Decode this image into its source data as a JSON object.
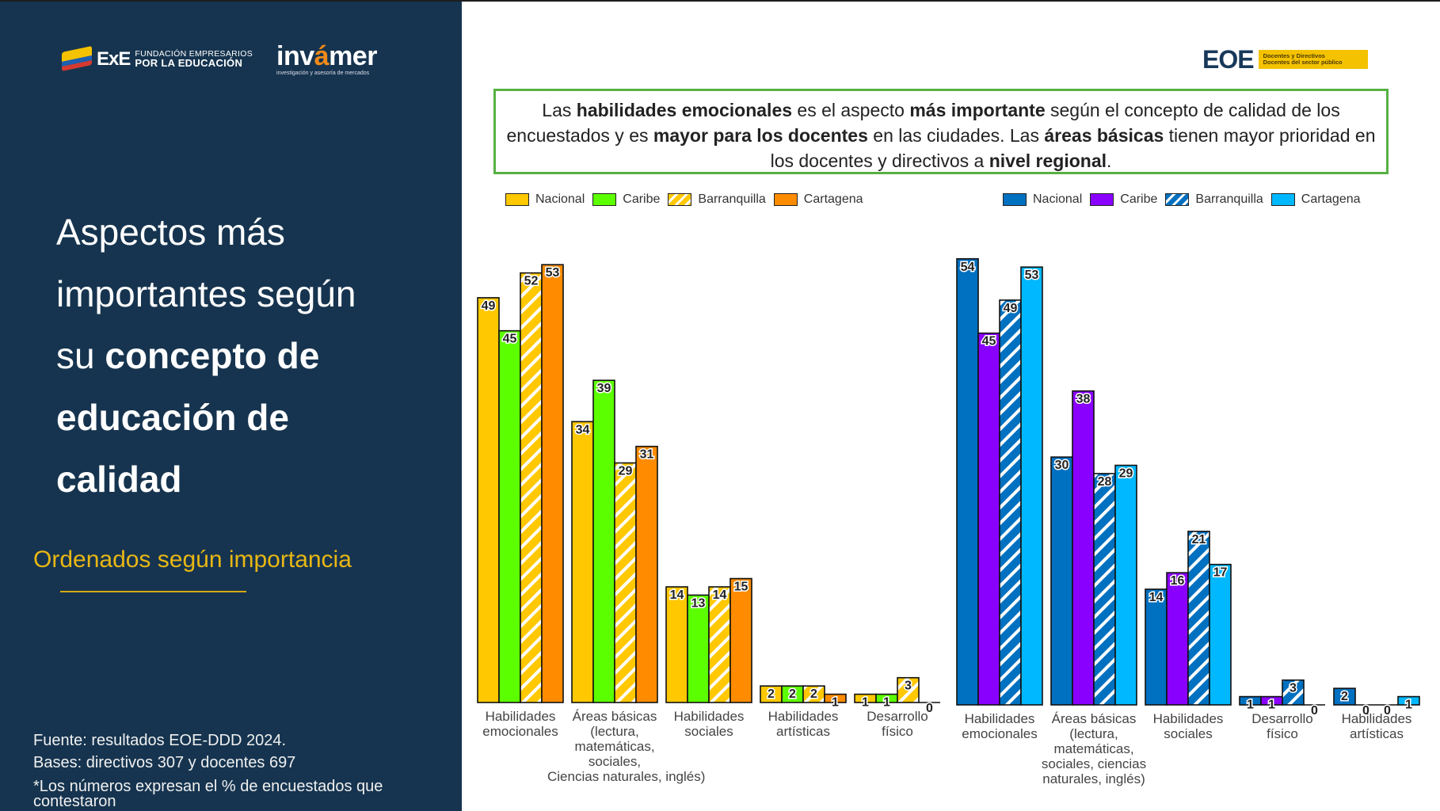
{
  "left_panel": {
    "logo_exe": {
      "mark": "ExE",
      "line1": "FUNDACIÓN EMPRESARIOS",
      "line2": "POR LA EDUCACIÓN"
    },
    "logo_invamer": {
      "name_part1": "inv",
      "name_part2": "á",
      "name_part3": "mer",
      "tagline": "investigación y asesoría de mercados"
    },
    "title_line1": "Aspectos más",
    "title_line2": "importantes según",
    "title_line3_light": "su ",
    "title_line3_bold": "concepto de",
    "title_line4": "educación de",
    "title_line5": "calidad",
    "subtitle": "Ordenados según importancia",
    "source": "Fuente: resultados EOE-DDD 2024.",
    "bases": "Bases: directivos 307 y docentes 697",
    "note": "*Los números expresan el % de encuestados que contestaron"
  },
  "header": {
    "eoe_logo": "EOE",
    "eoe_badge_line1": "Docentes y Directivos",
    "eoe_badge_line2": "Docentes del sector público"
  },
  "callout": {
    "segments": [
      {
        "t": "Las ",
        "b": false
      },
      {
        "t": "habilidades emocionales",
        "b": true
      },
      {
        "t": " es el aspecto ",
        "b": false
      },
      {
        "t": "más importante",
        "b": true
      },
      {
        "t": " según el concepto de calidad de los encuestados y es ",
        "b": false
      },
      {
        "t": "mayor para los docentes",
        "b": true
      },
      {
        "t": " en las ciudades. Las ",
        "b": false
      },
      {
        "t": "áreas básicas",
        "b": true
      },
      {
        "t": " tienen mayor prioridad en los docentes y directivos a ",
        "b": false
      },
      {
        "t": "nivel regional",
        "b": true
      },
      {
        "t": ".",
        "b": false
      }
    ]
  },
  "colors": {
    "left": {
      "Nacional": "#ffc800",
      "Caribe": "#5cff00",
      "Barranquilla": "#ffc800",
      "Cartagena": "#ff8c00"
    },
    "right": {
      "Nacional": "#0070c0",
      "Caribe": "#8a00ff",
      "Barranquilla": "#0070c0",
      "Cartagena": "#00b8ff"
    }
  },
  "chart_data": [
    {
      "type": "bar",
      "title": "",
      "xlabel": "",
      "ylabel": "% de encuestados",
      "ylim": [
        0,
        55
      ],
      "grid": false,
      "legend": "top-left",
      "categories": [
        "Habilidades emocionales",
        "Áreas básicas (lectura, matemáticas, sociales, Ciencias naturales, inglés)",
        "Habilidades sociales",
        "Habilidades artísticas",
        "Desarrollo físico"
      ],
      "category_lines": [
        [
          "Habilidades",
          "emocionales"
        ],
        [
          "Áreas básicas",
          "(lectura,",
          "matemáticas,",
          "sociales,",
          "Ciencias naturales, inglés)"
        ],
        [
          "Habilidades",
          "sociales"
        ],
        [
          "Habilidades",
          "artísticas"
        ],
        [
          "Desarrollo",
          "físico"
        ]
      ],
      "series": [
        {
          "name": "Nacional",
          "pattern": "solid",
          "values": [
            49,
            34,
            14,
            2,
            1
          ]
        },
        {
          "name": "Caribe",
          "pattern": "solid",
          "values": [
            45,
            39,
            13,
            2,
            1
          ]
        },
        {
          "name": "Barranquilla",
          "pattern": "striped",
          "values": [
            52,
            29,
            14,
            2,
            3
          ]
        },
        {
          "name": "Cartagena",
          "pattern": "solid",
          "values": [
            53,
            31,
            15,
            1,
            0
          ]
        }
      ]
    },
    {
      "type": "bar",
      "title": "",
      "xlabel": "",
      "ylabel": "% de encuestados",
      "ylim": [
        0,
        55
      ],
      "grid": false,
      "legend": "top-right",
      "categories": [
        "Habilidades emocionales",
        "Áreas básicas (lectura, matemáticas, sociales, ciencias naturales, inglés)",
        "Habilidades sociales",
        "Desarrollo físico",
        "Habilidades artísticas"
      ],
      "category_lines": [
        [
          "Habilidades",
          "emocionales"
        ],
        [
          "Áreas básicas",
          "(lectura,",
          "matemáticas,",
          "sociales, ciencias",
          "naturales, inglés)"
        ],
        [
          "Habilidades",
          "sociales"
        ],
        [
          "Desarrollo",
          "físico"
        ],
        [
          "Habilidades",
          "artísticas"
        ]
      ],
      "series": [
        {
          "name": "Nacional",
          "pattern": "solid",
          "values": [
            54,
            30,
            14,
            1,
            2
          ]
        },
        {
          "name": "Caribe",
          "pattern": "solid",
          "values": [
            45,
            38,
            16,
            1,
            0
          ]
        },
        {
          "name": "Barranquilla",
          "pattern": "striped",
          "values": [
            49,
            28,
            21,
            3,
            0
          ]
        },
        {
          "name": "Cartagena",
          "pattern": "solid",
          "values": [
            53,
            29,
            17,
            0,
            1
          ]
        }
      ]
    }
  ]
}
